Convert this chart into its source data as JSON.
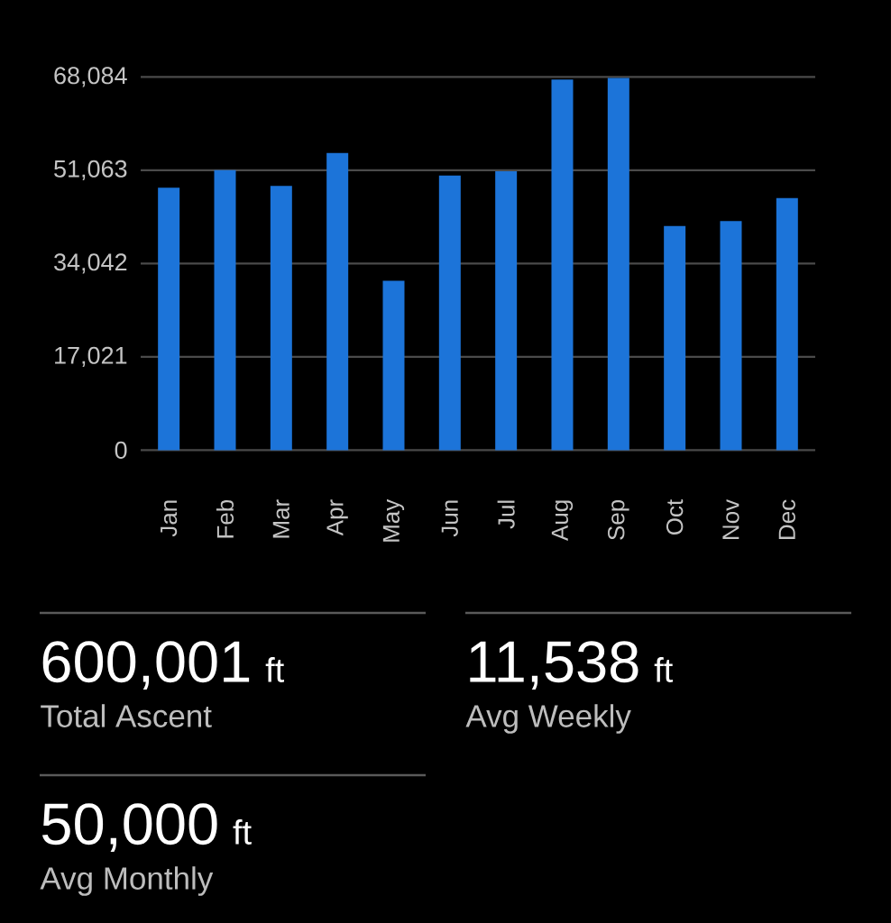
{
  "chart_data": {
    "type": "bar",
    "categories": [
      "Jan",
      "Feb",
      "Mar",
      "Apr",
      "May",
      "Jun",
      "Jul",
      "Aug",
      "Sep",
      "Oct",
      "Nov",
      "Dec"
    ],
    "values": [
      47900,
      51100,
      48200,
      54200,
      30900,
      50100,
      50900,
      67600,
      67900,
      40900,
      41800,
      46000
    ],
    "color": "#1c74d9",
    "ylim": [
      0,
      68084
    ],
    "yticks": [
      0,
      {
        "value": 17021,
        "label": "17,021"
      },
      {
        "value": 34042,
        "label": "34,042"
      },
      {
        "value": 51063,
        "label": "51,063"
      },
      {
        "value": 68084,
        "label": "68,084"
      }
    ],
    "grid": "y",
    "annotations": [
      "600,001",
      "ft",
      "Total Ascent",
      "11,538",
      "ft",
      "Avg Weekly",
      "50,000",
      "ft",
      "Avg Monthly"
    ]
  }
}
